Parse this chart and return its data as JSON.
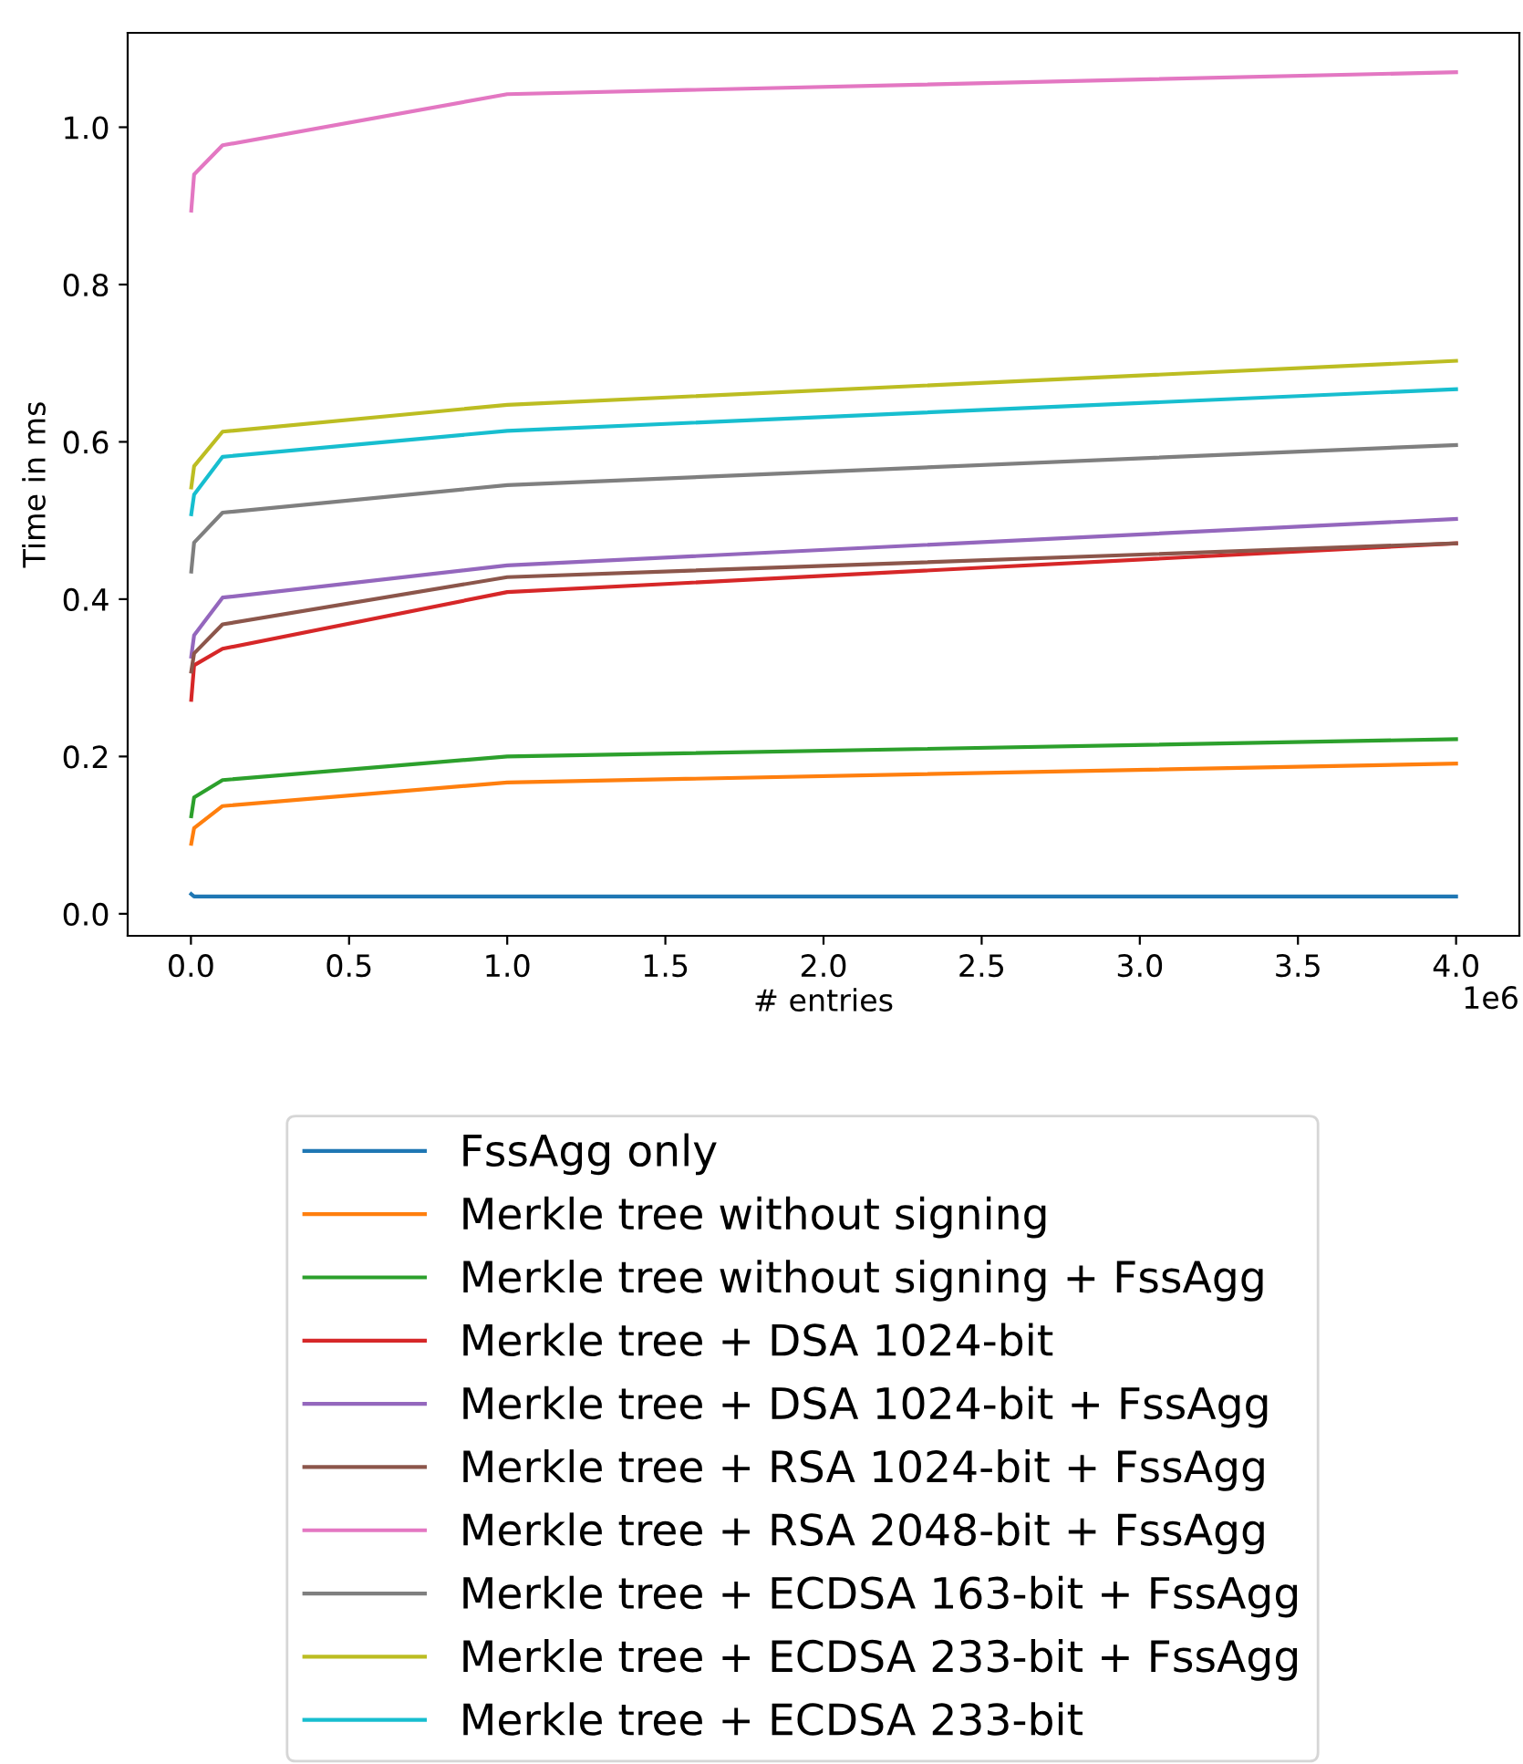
{
  "chart_data": {
    "type": "line",
    "xlabel": "# entries",
    "ylabel": "Time in ms",
    "x": [
      0.001,
      0.01,
      0.1,
      1,
      4
    ],
    "series": [
      {
        "name": "FssAgg only",
        "color": "#1f77b4",
        "values": [
          0.025,
          0.022,
          0.022,
          0.022,
          0.022
        ]
      },
      {
        "name": "Merkle tree without signing",
        "color": "#ff7f0e",
        "values": [
          0.089,
          0.109,
          0.137,
          0.167,
          0.191
        ]
      },
      {
        "name": "Merkle tree without signing + FssAgg",
        "color": "#2ca02c",
        "values": [
          0.124,
          0.148,
          0.17,
          0.2,
          0.222
        ]
      },
      {
        "name": "Merkle tree + DSA 1024-bit",
        "color": "#d62728",
        "values": [
          0.272,
          0.316,
          0.337,
          0.409,
          0.471
        ]
      },
      {
        "name": "Merkle tree + DSA 1024-bit + FssAgg",
        "color": "#9467bd",
        "values": [
          0.327,
          0.354,
          0.402,
          0.443,
          0.502
        ]
      },
      {
        "name": "Merkle tree + RSA 1024-bit + FssAgg",
        "color": "#8c564b",
        "values": [
          0.308,
          0.331,
          0.368,
          0.428,
          0.471
        ]
      },
      {
        "name": "Merkle tree + RSA 2048-bit + FssAgg",
        "color": "#e377c2",
        "values": [
          0.894,
          0.94,
          0.977,
          1.042,
          1.07
        ]
      },
      {
        "name": "Merkle tree + ECDSA 163-bit + FssAgg",
        "color": "#7f7f7f",
        "values": [
          0.435,
          0.472,
          0.51,
          0.545,
          0.596
        ]
      },
      {
        "name": "Merkle tree + ECDSA 233-bit + FssAgg",
        "color": "#bcbd22",
        "values": [
          0.542,
          0.569,
          0.613,
          0.647,
          0.703
        ]
      },
      {
        "name": "Merkle tree + ECDSA 233-bit",
        "color": "#17becf",
        "values": [
          0.508,
          0.533,
          0.581,
          0.614,
          0.667
        ]
      }
    ],
    "xlim": [
      -0.2,
      4.2
    ],
    "xticks": [
      {
        "value": 0,
        "label": "0.0"
      },
      0.5,
      {
        "value": 1,
        "label": "1.0"
      },
      1.5,
      {
        "value": 2,
        "label": "2.0"
      },
      2.5,
      {
        "value": 3,
        "label": "3.0"
      },
      3.5,
      {
        "value": 4,
        "label": "4.0"
      }
    ],
    "ylim": [
      -0.028,
      1.12
    ],
    "yticks": [
      {
        "value": 0,
        "label": "0.0"
      },
      {
        "value": 0.2,
        "label": "0.2"
      },
      {
        "value": 0.4,
        "label": "0.4"
      },
      {
        "value": 0.6,
        "label": "0.6"
      },
      {
        "value": 0.8,
        "label": "0.8"
      },
      {
        "value": 1.0,
        "label": "1.0"
      }
    ],
    "annotations": [
      "1e6"
    ],
    "legend": "bottom",
    "grid": false,
    "marker": "none",
    "line_style": "solid"
  }
}
